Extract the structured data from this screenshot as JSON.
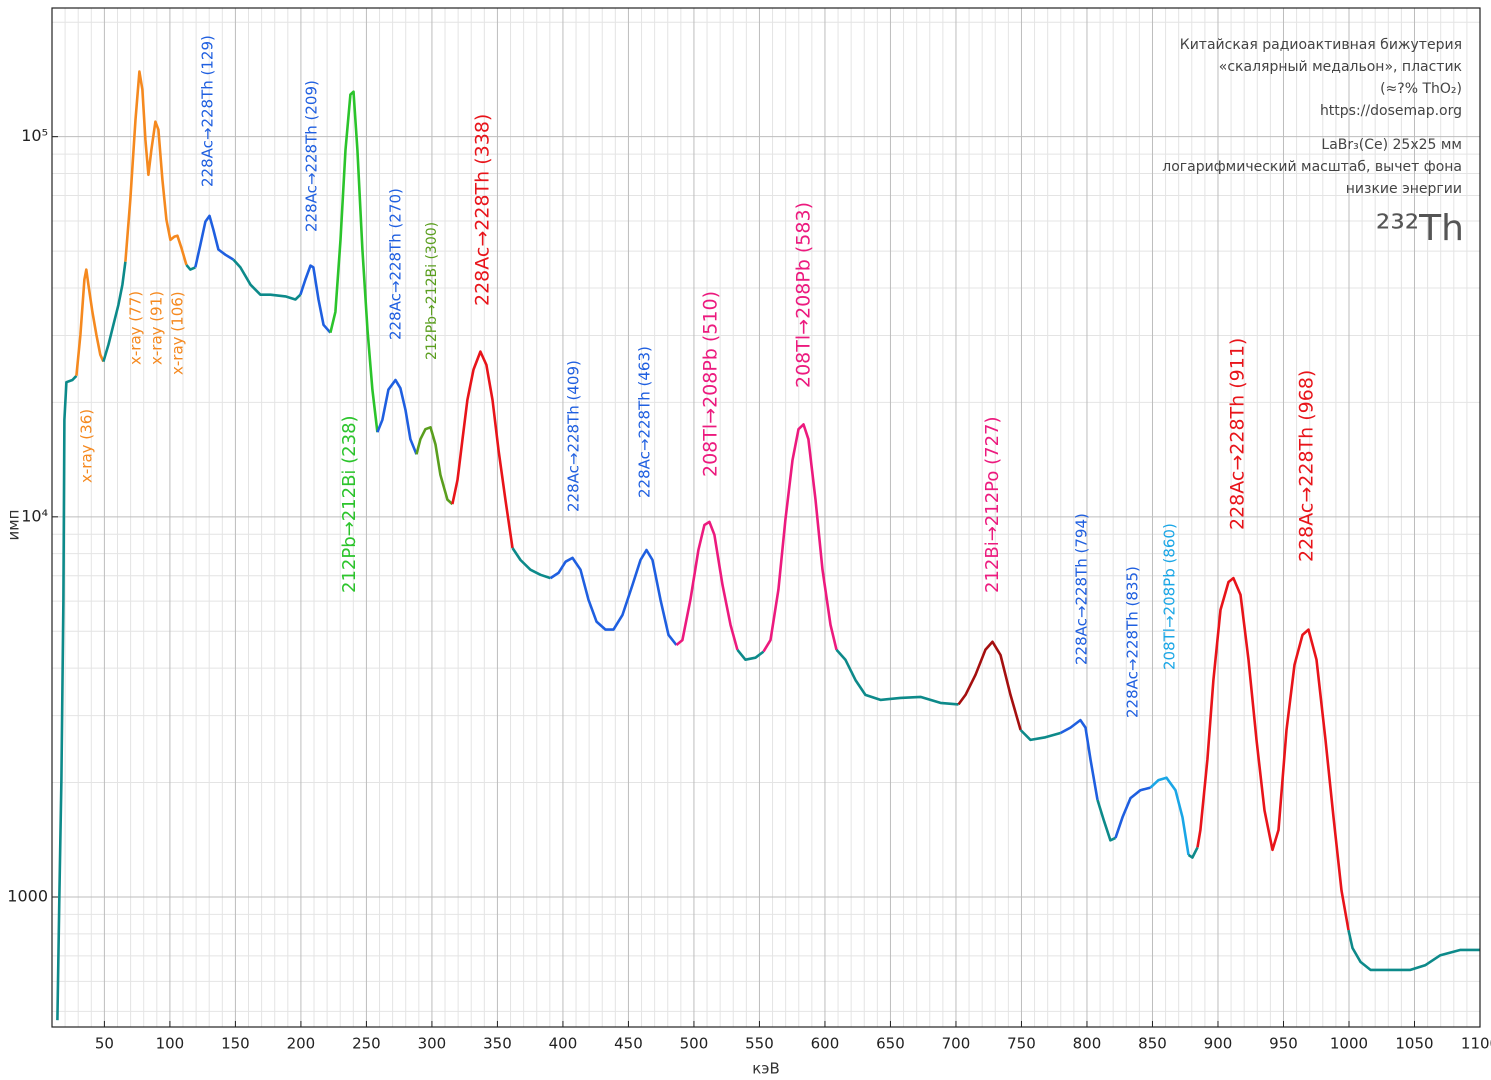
{
  "chart_data": {
    "type": "line",
    "x_label": "кэВ",
    "y_label": "имп",
    "xlim": [
      10,
      1100
    ],
    "ylim": [
      455,
      218000
    ],
    "log_y": true,
    "grid": true,
    "xticks": [
      50,
      100,
      150,
      200,
      250,
      300,
      350,
      400,
      450,
      500,
      550,
      600,
      650,
      700,
      750,
      800,
      850,
      900,
      950,
      1000,
      1050,
      1100
    ],
    "xminorticks": [
      20,
      30,
      40,
      60,
      70,
      80,
      90,
      110,
      120,
      130,
      140,
      160,
      170,
      180,
      190,
      210,
      220,
      230,
      240,
      260,
      270,
      280,
      290,
      310,
      320,
      330,
      340,
      360,
      370,
      380,
      390,
      410,
      420,
      430,
      440,
      460,
      470,
      480,
      490,
      510,
      520,
      530,
      540,
      560,
      570,
      580,
      590,
      610,
      620,
      630,
      640,
      660,
      670,
      680,
      690,
      710,
      720,
      730,
      740,
      760,
      770,
      780,
      790,
      810,
      820,
      830,
      840,
      860,
      870,
      880,
      890,
      910,
      920,
      930,
      940,
      960,
      970,
      980,
      990,
      1010,
      1020,
      1030,
      1040,
      1060,
      1070,
      1080,
      1090
    ],
    "yticks": [
      1000,
      {
        "value": 10000,
        "label": "10⁴"
      },
      {
        "value": 100000,
        "label": "10⁵"
      }
    ],
    "yminorticks": [
      500,
      600,
      700,
      800,
      900,
      2000,
      3000,
      4000,
      5000,
      6000,
      7000,
      8000,
      9000,
      20000,
      30000,
      40000,
      50000,
      60000,
      70000,
      80000,
      90000,
      200000
    ],
    "series": [
      {
        "color": "#0d8a8a",
        "x": [
          14.1,
          15.6,
          17.2,
          18.7,
          19.5,
          21.0,
          25.6,
          28.6
        ],
        "values": [
          474,
          982,
          2030,
          6050,
          18000,
          22600,
          22900,
          23500
        ]
      },
      {
        "color": "#f5891f",
        "x": [
          28.6,
          31.7,
          34.7,
          36.2,
          37.8,
          40.8,
          43.9,
          46.9,
          49.2
        ],
        "values": [
          23500,
          30100,
          42100,
          44700,
          40800,
          34600,
          30100,
          26700,
          25600
        ]
      },
      {
        "color": "#0d8a8a",
        "x": [
          49.2,
          53.1,
          56.9,
          60.7,
          63.7,
          66.0
        ],
        "values": [
          25600,
          28400,
          32000,
          36100,
          40800,
          46900
        ]
      },
      {
        "color": "#f5891f",
        "x": [
          66.0,
          69.8,
          73.7,
          76.7,
          79.0,
          81.3,
          83.6,
          85.9,
          88.9,
          91.2,
          94.3,
          97.3,
          100.4,
          103.4,
          105.7,
          108.8,
          112.6
        ],
        "values": [
          46900,
          68200,
          110900,
          148300,
          132900,
          98200,
          79400,
          92400,
          109500,
          104300,
          77100,
          60500,
          53500,
          54600,
          54900,
          51000,
          46000
        ]
      },
      {
        "color": "#0d8a8a",
        "x": [
          112.6,
          115.6,
          119.4
        ],
        "values": [
          46000,
          44700,
          45300
        ]
      },
      {
        "color": "#1f5fe0",
        "x": [
          119.4,
          123.3,
          127.1,
          130.2,
          133.2,
          137.0,
          142.4,
          148.5
        ],
        "values": [
          45300,
          52000,
          59800,
          61900,
          56900,
          50500,
          48900,
          47500
        ]
      },
      {
        "color": "#0d8a8a",
        "x": [
          148.5,
          153.8,
          161.5,
          169.1,
          176.7,
          188.2,
          195.8,
          199.6
        ],
        "values": [
          47500,
          45300,
          40800,
          38400,
          38400,
          38000,
          37300,
          38400
        ]
      },
      {
        "color": "#1f5fe0",
        "x": [
          199.6,
          203.4,
          207.3,
          209.5,
          213.4,
          217.2,
          222.5
        ],
        "values": [
          38400,
          42100,
          45800,
          45300,
          37300,
          32000,
          30500
        ]
      },
      {
        "color": "#2bc42b",
        "x": [
          222.5,
          226.3,
          230.2,
          234.0,
          237.8,
          240.1,
          243.1,
          246.9,
          250.8,
          254.6,
          258.4
        ],
        "values": [
          30500,
          34600,
          53500,
          92400,
          129000,
          131300,
          92400,
          50500,
          31000,
          21600,
          16700
        ]
      },
      {
        "color": "#1f5fe0",
        "x": [
          258.4,
          262.2,
          266.8,
          272.2,
          275.9,
          279.8,
          283.6,
          288.2
        ],
        "values": [
          16700,
          18000,
          21600,
          22900,
          21800,
          19100,
          16000,
          14600
        ]
      },
      {
        "color": "#5a9e1e",
        "x": [
          288.2,
          291.2,
          295.0,
          298.9,
          302.7,
          306.5,
          311.8,
          315.6
        ],
        "values": [
          14600,
          16000,
          17000,
          17200,
          15500,
          12900,
          11100,
          10800
        ]
      },
      {
        "color": "#e8141a",
        "x": [
          315.6,
          319.5,
          323.3,
          327.1,
          331.7,
          337.0,
          341.6,
          346.2,
          350.8,
          356.1,
          361.5
        ],
        "values": [
          10800,
          12500,
          16000,
          20300,
          24400,
          27200,
          25100,
          20300,
          15000,
          11100,
          8280
        ]
      },
      {
        "color": "#0d8a8a",
        "x": [
          361.5,
          367.6,
          375.2,
          382.9,
          390.5
        ],
        "values": [
          8280,
          7700,
          7260,
          7040,
          6900
        ]
      },
      {
        "color": "#1f5fe0",
        "x": [
          390.5,
          396.6,
          402.0,
          407.3,
          413.4,
          419.5,
          425.6,
          432.5,
          438.6,
          445.5,
          453.1,
          459.2,
          463.8,
          468.4,
          474.5,
          480.6,
          486.6
        ],
        "values": [
          6900,
          7120,
          7620,
          7800,
          7260,
          6050,
          5300,
          5050,
          5050,
          5520,
          6620,
          7700,
          8180,
          7700,
          6050,
          4890,
          4600
        ]
      },
      {
        "color": "#ec1a7e",
        "x": [
          486.6,
          491.2,
          497.3,
          503.4,
          508.0,
          511.8,
          515.6,
          521.8,
          527.9,
          533.2
        ],
        "values": [
          4600,
          4740,
          6050,
          8180,
          9520,
          9700,
          8970,
          6620,
          5200,
          4470
        ]
      },
      {
        "color": "#0d8a8a",
        "x": [
          533.2,
          539.3,
          547.0,
          553.1
        ],
        "values": [
          4470,
          4210,
          4260,
          4420
        ]
      },
      {
        "color": "#ec1a7e",
        "x": [
          553.1,
          558.4,
          564.5,
          569.8,
          575.2,
          579.8,
          583.6,
          587.4,
          592.8,
          598.1,
          604.2,
          608.8
        ],
        "values": [
          4420,
          4740,
          6430,
          9820,
          14100,
          17000,
          17500,
          16000,
          11100,
          7260,
          5200,
          4470
        ]
      },
      {
        "color": "#0d8a8a",
        "x": [
          608.8,
          615.6,
          623.3,
          630.9,
          642.4,
          657.6,
          672.9,
          688.2,
          701.9
        ],
        "values": [
          4470,
          4210,
          3720,
          3400,
          3300,
          3340,
          3360,
          3240,
          3210
        ]
      },
      {
        "color": "#a50f0f",
        "x": [
          701.9,
          707.3,
          714.9,
          722.5,
          727.9,
          734.0,
          741.6,
          749.3
        ],
        "values": [
          3210,
          3400,
          3840,
          4470,
          4690,
          4330,
          3400,
          2750
        ]
      },
      {
        "color": "#0d8a8a",
        "x": [
          749.3,
          756.9,
          768.3,
          779.8
        ],
        "values": [
          2750,
          2590,
          2630,
          2700
        ]
      },
      {
        "color": "#1f5fe0",
        "x": [
          779.8,
          787.4,
          795.0,
          798.9,
          802.7,
          808.0
        ],
        "values": [
          2700,
          2790,
          2920,
          2790,
          2300,
          1800
        ]
      },
      {
        "color": "#0d8a8a",
        "x": [
          808.0,
          812.6,
          817.9,
          821.8
        ],
        "values": [
          1800,
          1600,
          1410,
          1430
        ]
      },
      {
        "color": "#1f5fe0",
        "x": [
          821.8,
          827.1,
          833.2,
          840.8,
          848.5
        ],
        "values": [
          1430,
          1620,
          1820,
          1910,
          1940
        ]
      },
      {
        "color": "#1aa6e6",
        "x": [
          848.5,
          854.6,
          860.7,
          867.6,
          872.9,
          877.5
        ],
        "values": [
          1940,
          2030,
          2060,
          1910,
          1620,
          1290
        ]
      },
      {
        "color": "#0d8a8a",
        "x": [
          877.5,
          880.5,
          884.4
        ],
        "values": [
          1290,
          1270,
          1350
        ]
      },
      {
        "color": "#e8141a",
        "x": [
          884.4,
          886.6,
          891.9,
          896.5,
          901.9,
          908.0,
          911.8,
          917.2,
          923.3,
          929.4,
          935.5,
          941.6,
          946.2,
          952.3,
          958.4,
          964.5,
          969.1,
          975.2,
          982.1,
          988.2,
          994.3,
          999.6
        ],
        "values": [
          1350,
          1500,
          2300,
          3720,
          5690,
          6740,
          6900,
          6240,
          4210,
          2590,
          1690,
          1330,
          1500,
          2750,
          4080,
          4890,
          5050,
          4210,
          2590,
          1620,
          1040,
          818
        ]
      },
      {
        "color": "#0d8a8a",
        "x": [
          999.6,
          1002.7,
          1008.8,
          1016.4,
          1031.7,
          1046.9,
          1058.4,
          1069.8,
          1085.1,
          1100
        ],
        "values": [
          818,
          734,
          675,
          643,
          643,
          643,
          662,
          703,
          726,
          726
        ]
      }
    ],
    "annotations": [
      {
        "text": "x-ray (36)",
        "color": "#f5891f"
      },
      {
        "text": "x-ray (77)",
        "color": "#f5891f"
      },
      {
        "text": "x-ray (91)",
        "color": "#f5891f"
      },
      {
        "text": "x-ray (106)",
        "color": "#f5891f"
      },
      {
        "text": "228Ac→228Th (129)",
        "color": "#1f5fe0"
      },
      {
        "text": "228Ac→228Th (209)",
        "color": "#1f5fe0"
      },
      {
        "text": "212Pb→212Bi (238)",
        "color": "#2bc42b"
      },
      {
        "text": "228Ac→228Th (270)",
        "color": "#1f5fe0"
      },
      {
        "text": "212Pb→212Bi (300)",
        "color": "#5a9e1e"
      },
      {
        "text": "228Ac→228Th (338)",
        "color": "#e8141a"
      },
      {
        "text": "228Ac→228Th (409)",
        "color": "#1f5fe0"
      },
      {
        "text": "228Ac→228Th (463)",
        "color": "#1f5fe0"
      },
      {
        "text": "208Tl→208Pb (510)",
        "color": "#ec1a7e"
      },
      {
        "text": "208Tl→208Pb (583)",
        "color": "#ec1a7e"
      },
      {
        "text": "212Bi→212Po (727)",
        "color": "#ec1a7e"
      },
      {
        "text": "228Ac→228Th (794)",
        "color": "#1f5fe0"
      },
      {
        "text": "228Ac→228Th (835)",
        "color": "#1f5fe0"
      },
      {
        "text": "208Tl→208Pb (860)",
        "color": "#1aa6e6"
      },
      {
        "text": "228Ac→228Th (911)",
        "color": "#e8141a"
      },
      {
        "text": "228Ac→228Th (968)",
        "color": "#e8141a"
      }
    ],
    "info": [
      "Китайская радиоактивная бижутерия",
      "«скалярный медальон», пластик",
      "(≈?% ThO₂)",
      "https://dosemap.org",
      "LaBr₃(Ce) 25x25 мм",
      "логарифмический масштаб, вычет фона",
      "низкие энергии"
    ],
    "isotope": "²³²Th"
  }
}
